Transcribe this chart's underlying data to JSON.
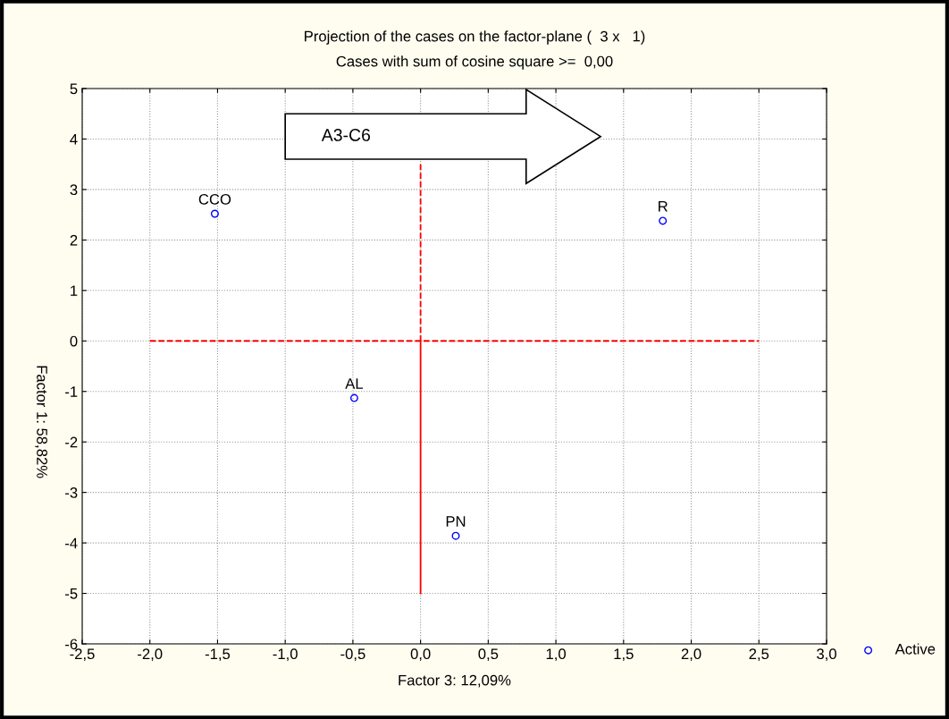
{
  "chart_data": {
    "type": "scatter",
    "title": "Projection of the cases on the factor-plane (  3 x   1)",
    "subtitle": "Cases with sum of cosine square >=  0,00",
    "xlabel": "Factor 3: 12,09%",
    "ylabel": "Factor 1: 58,82%",
    "series": [
      {
        "name": "Active",
        "color": "#0000ff",
        "marker": "circle",
        "x": [
          -1.52,
          1.79,
          -0.49,
          0.26
        ],
        "values": [
          2.52,
          2.38,
          -1.13,
          -3.86
        ]
      },
      {
        "type": "line",
        "color": "#ff0000",
        "line_style": "dashed",
        "marker": "none",
        "x": [
          -2.0,
          2.5
        ],
        "values": [
          0,
          0
        ]
      },
      {
        "type": "line",
        "color": "#ff0000",
        "line_style": "dashed",
        "marker": "none",
        "x": [
          0,
          0
        ],
        "values": [
          3.5,
          0
        ]
      },
      {
        "type": "line",
        "color": "#ff0000",
        "line_style": "solid",
        "marker": "none",
        "x": [
          0,
          0
        ],
        "values": [
          0,
          -5
        ]
      }
    ],
    "annotations": [
      {
        "text": "CCO",
        "x": -1.52,
        "y": 2.52
      },
      {
        "text": "R",
        "x": 1.79,
        "y": 2.38
      },
      {
        "text": "AL",
        "x": -0.49,
        "y": -1.13
      },
      {
        "text": "PN",
        "x": 0.26,
        "y": -3.86
      },
      "A3-C6"
    ],
    "xlim": [
      -2.5,
      3.0
    ],
    "ylim": [
      -6,
      5
    ],
    "xticks": [
      {
        "value": -2.5,
        "label": "-2,5"
      },
      {
        "value": -2.0,
        "label": "-2,0"
      },
      {
        "value": -1.5,
        "label": "-1,5"
      },
      {
        "value": -1.0,
        "label": "-1,0"
      },
      {
        "value": -0.5,
        "label": "-0,5"
      },
      {
        "value": 0.0,
        "label": "0,0"
      },
      {
        "value": 0.5,
        "label": "0,5"
      },
      {
        "value": 1.0,
        "label": "1,0"
      },
      {
        "value": 1.5,
        "label": "1,5"
      },
      {
        "value": 2.0,
        "label": "2,0"
      },
      {
        "value": 2.5,
        "label": "2,5"
      },
      {
        "value": 3.0,
        "label": "3,0"
      }
    ],
    "yticks": [
      -6,
      -5,
      -4,
      -3,
      -2,
      -1,
      0,
      1,
      2,
      3,
      4,
      5
    ],
    "grid": true,
    "legend": "bottom right"
  }
}
